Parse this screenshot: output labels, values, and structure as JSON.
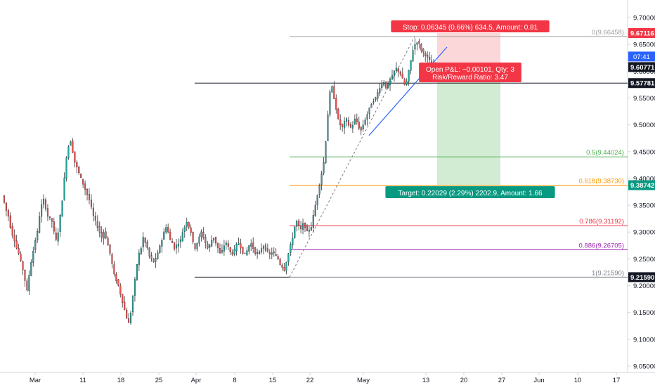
{
  "chart_data": {
    "type": "candlestick",
    "title": "",
    "xlabel": "",
    "ylabel": "",
    "ylim": [
      9.05,
      9.7
    ],
    "y_ticks": [
      "9.70000",
      "9.65000",
      "9.60000",
      "9.55000",
      "9.50000",
      "9.45000",
      "9.40000",
      "9.35000",
      "9.30000",
      "9.25000",
      "9.20000",
      "9.15000",
      "9.10000",
      "9.05000"
    ],
    "x_ticks": [
      "Mar",
      "11",
      "18",
      "25",
      "Apr",
      "8",
      "15",
      "22",
      "May",
      "13",
      "20",
      "27",
      "Jun",
      "10",
      "17"
    ],
    "price_path": [
      9.368,
      9.355,
      9.34,
      9.33,
      9.31,
      9.295,
      9.285,
      9.27,
      9.26,
      9.245,
      9.23,
      9.21,
      9.19,
      9.22,
      9.245,
      9.265,
      9.285,
      9.3,
      9.33,
      9.35,
      9.36,
      9.345,
      9.33,
      9.325,
      9.32,
      9.3,
      9.285,
      9.3,
      9.33,
      9.36,
      9.4,
      9.44,
      9.46,
      9.47,
      9.45,
      9.43,
      9.42,
      9.41,
      9.4,
      9.39,
      9.38,
      9.37,
      9.36,
      9.345,
      9.33,
      9.32,
      9.31,
      9.3,
      9.29,
      9.3,
      9.29,
      9.275,
      9.26,
      9.24,
      9.22,
      9.21,
      9.2,
      9.185,
      9.17,
      9.155,
      9.14,
      9.13,
      9.15,
      9.18,
      9.21,
      9.24,
      9.26,
      9.27,
      9.29,
      9.28,
      9.27,
      9.255,
      9.25,
      9.245,
      9.25,
      9.26,
      9.275,
      9.285,
      9.3,
      9.31,
      9.3,
      9.285,
      9.28,
      9.27,
      9.275,
      9.28,
      9.285,
      9.3,
      9.31,
      9.32,
      9.31,
      9.3,
      9.28,
      9.27,
      9.28,
      9.29,
      9.3,
      9.29,
      9.28,
      9.27,
      9.275,
      9.285,
      9.29,
      9.28,
      9.27,
      9.26,
      9.265,
      9.275,
      9.28,
      9.272,
      9.262,
      9.26,
      9.266,
      9.276,
      9.28,
      9.272,
      9.262,
      9.258,
      9.265,
      9.275,
      9.278,
      9.27,
      9.262,
      9.258,
      9.262,
      9.27,
      9.274,
      9.268,
      9.262,
      9.258,
      9.262,
      9.26,
      9.255,
      9.25,
      9.24,
      9.235,
      9.23,
      9.245,
      9.26,
      9.275,
      9.29,
      9.31,
      9.32,
      9.31,
      9.305,
      9.315,
      9.31,
      9.3,
      9.305,
      9.31,
      9.33,
      9.35,
      9.37,
      9.39,
      9.41,
      9.43,
      9.47,
      9.52,
      9.56,
      9.57,
      9.55,
      9.53,
      9.51,
      9.5,
      9.495,
      9.505,
      9.51,
      9.5,
      9.495,
      9.5,
      9.51,
      9.505,
      9.495,
      9.49,
      9.5,
      9.51,
      9.52,
      9.53,
      9.54,
      9.545,
      9.55,
      9.56,
      9.57,
      9.575,
      9.58,
      9.57,
      9.575,
      9.585,
      9.59,
      9.6,
      9.605,
      9.6,
      9.595,
      9.585,
      9.575,
      9.58,
      9.6,
      9.62,
      9.64,
      9.65,
      9.655,
      9.65,
      9.64,
      9.635,
      9.63,
      9.625,
      9.62,
      9.615,
      9.61,
      9.607
    ],
    "current_price": "9.60771",
    "countdown": "07:41",
    "trendline_from": [
      9.48,
      9.595
    ],
    "fibonacci": {
      "high": 9.66458,
      "low": 9.2159,
      "levels": [
        {
          "label": "0(9.66458)",
          "value": 9.66458,
          "color": "#9e9e9e"
        },
        {
          "label": "0.5(9.44024)",
          "value": 9.44024,
          "color": "#4caf50"
        },
        {
          "label": "0.618(9.38730)",
          "value": 9.3873,
          "color": "#ff9800"
        },
        {
          "label": "0.786(9.31192)",
          "value": 9.31192,
          "color": "#f23645"
        },
        {
          "label": "0.886(9.26705)",
          "value": 9.26705,
          "color": "#9c27b0"
        },
        {
          "label": "1(9.21590)",
          "value": 9.2159,
          "color": "#787b86"
        }
      ]
    },
    "horizontal_line": {
      "value": 9.57781,
      "label": "9.57781"
    },
    "position": {
      "type": "long",
      "stop": 9.67116,
      "target": 9.38742,
      "entry": 9.60771,
      "stop_text": "Stop: 0.06345 (0.66%) 634.5, Amount: 0.81",
      "target_text": "Target: 0.22029 (2.29%) 2202.9, Amount: 1.66",
      "pnl_text": "Open P&L: −0.00101, Qty: 3",
      "rr_text": "Risk/Reward Ratio: 3.47"
    },
    "price_badges": [
      {
        "label": "9.67116",
        "value": 9.67116,
        "bg": "#f23645",
        "fg": "#ffffff"
      },
      {
        "label": "9.60771",
        "value": 9.60771,
        "bg": "#131722",
        "fg": "#ffffff"
      },
      {
        "label": "9.57781",
        "value": 9.57781,
        "bg": "#131722",
        "fg": "#ffffff"
      },
      {
        "label": "9.38742",
        "value": 9.38742,
        "bg": "#089981",
        "fg": "#ffffff"
      },
      {
        "label": "9.21590",
        "value": 9.2159,
        "bg": "#131722",
        "fg": "#ffffff"
      }
    ],
    "colors": {
      "up": "#26a69a",
      "down": "#ef5350",
      "wick": "#333333",
      "axis_text": "#131722",
      "countdown_bg": "#2962ff"
    }
  }
}
